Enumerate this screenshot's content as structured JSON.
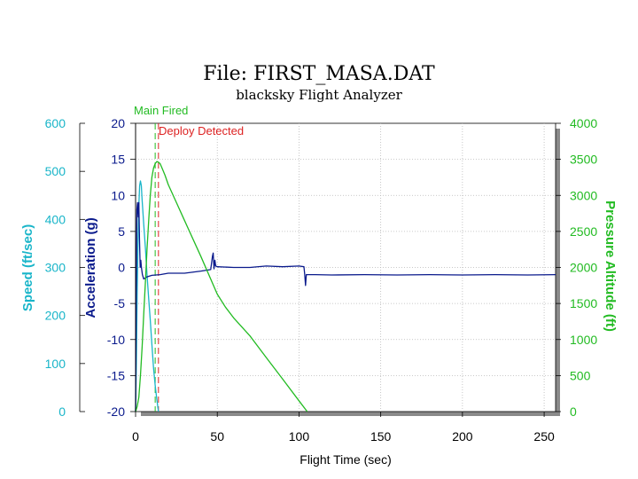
{
  "chart_data": {
    "type": "line",
    "title": "File: FIRST_MASA.DAT",
    "subtitle": "blacksky Flight Analyzer",
    "xlabel": "Flight Time (sec)",
    "xlim": [
      0,
      257
    ],
    "x_ticks": [
      0,
      50,
      100,
      150,
      200,
      250
    ],
    "axes": {
      "speed": {
        "label": "Speed (ft/sec)",
        "range": [
          0,
          600
        ],
        "ticks": [
          0,
          100,
          200,
          300,
          400,
          500,
          600
        ],
        "color": "#19b5c9"
      },
      "acceleration": {
        "label": "Acceleration (g)",
        "range": [
          -20,
          20
        ],
        "ticks": [
          -20,
          -15,
          -10,
          -5,
          0,
          5,
          10,
          15,
          20
        ],
        "color": "#0a1a8c"
      },
      "altitude": {
        "label": "Pressure Altitude (ft)",
        "range": [
          0,
          4000
        ],
        "ticks": [
          0,
          500,
          1000,
          1500,
          2000,
          2500,
          3000,
          3500,
          4000
        ],
        "color": "#22bb22"
      }
    },
    "grid": true,
    "annotations": [
      {
        "text": "Main Fired",
        "x": 12,
        "color": "#22bb22"
      },
      {
        "text": "Deploy Detected",
        "x": 14,
        "color": "#dd2222"
      }
    ],
    "series": [
      {
        "axis": "speed",
        "color": "#19b5c9",
        "x": [
          0,
          0.5,
          1,
          1.5,
          2,
          2.5,
          3,
          3.5,
          4,
          5,
          6,
          7,
          8,
          9,
          10,
          11,
          12,
          13,
          14
        ],
        "y": [
          0,
          100,
          250,
          360,
          430,
          470,
          480,
          470,
          440,
          390,
          340,
          285,
          235,
          190,
          140,
          90,
          55,
          25,
          0
        ]
      },
      {
        "axis": "acceleration",
        "color": "#0a1a8c",
        "x": [
          0,
          0.4,
          0.8,
          1.2,
          1.6,
          2.0,
          2.4,
          2.8,
          3.2,
          3.6,
          4.2,
          5,
          7,
          10,
          15,
          20,
          30,
          40,
          46,
          47,
          47.5,
          48,
          48.5,
          49,
          50,
          60,
          70,
          80,
          90,
          100,
          103,
          103.5,
          104,
          104.5,
          105,
          106,
          110,
          120,
          140,
          160,
          180,
          200,
          220,
          240,
          257
        ],
        "y": [
          -20,
          -5,
          8,
          9,
          7,
          9,
          4,
          0,
          1,
          0,
          -1,
          -1.6,
          -1.3,
          -1.1,
          -1,
          -0.8,
          -0.8,
          -0.5,
          -0.3,
          1.5,
          2,
          -0.2,
          1,
          0.2,
          0.1,
          0,
          0,
          0.2,
          0.1,
          0.2,
          0.1,
          -1,
          -2.5,
          -1,
          -1,
          -1,
          -1,
          -1.05,
          -1,
          -1.05,
          -1,
          -1.05,
          -1,
          -1.05,
          -1
        ]
      },
      {
        "axis": "altitude",
        "color": "#22bb22",
        "x": [
          0,
          1,
          2,
          3,
          4,
          5,
          6,
          7,
          8,
          9,
          10,
          11,
          12,
          13,
          14,
          15,
          16,
          18,
          20,
          25,
          30,
          40,
          50,
          55,
          60,
          70,
          80,
          90,
          100,
          105
        ],
        "y": [
          0,
          70,
          200,
          500,
          900,
          1350,
          1800,
          2250,
          2650,
          3000,
          3250,
          3380,
          3440,
          3470,
          3460,
          3440,
          3390,
          3280,
          3150,
          2900,
          2650,
          2150,
          1630,
          1450,
          1300,
          1050,
          750,
          450,
          150,
          0
        ]
      }
    ]
  }
}
